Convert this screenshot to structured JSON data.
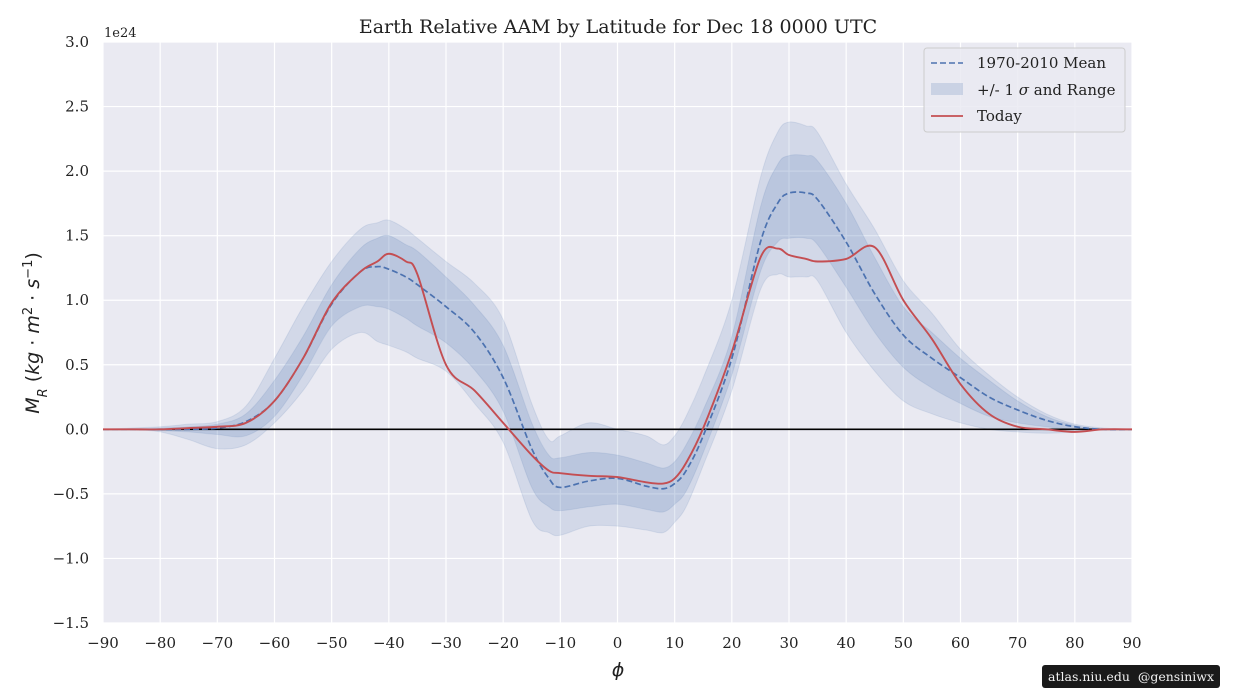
{
  "chart_data": {
    "type": "area",
    "title": "Earth Relative AAM by Latitude for Dec 18 0000 UTC",
    "xlabel": "ϕ",
    "ylabel": "M_R (kg·m²·s⁻¹)",
    "yscale_label": "1e24",
    "xlim": [
      -90,
      90
    ],
    "ylim": [
      -1.5,
      3.0
    ],
    "x_ticks": [
      -90,
      -80,
      -70,
      -60,
      -50,
      -40,
      -30,
      -20,
      -10,
      0,
      10,
      20,
      30,
      40,
      50,
      60,
      70,
      80,
      90
    ],
    "x_tick_labels": [
      "−90",
      "−80",
      "−70",
      "−60",
      "−50",
      "−40",
      "−30",
      "−20",
      "−10",
      "0",
      "10",
      "20",
      "30",
      "40",
      "50",
      "60",
      "70",
      "80",
      "90"
    ],
    "y_ticks": [
      -1.5,
      -1.0,
      -0.5,
      0.0,
      0.5,
      1.0,
      1.5,
      2.0,
      2.5,
      3.0
    ],
    "y_tick_labels": [
      "−1.5",
      "−1.0",
      "−0.5",
      "0.0",
      "0.5",
      "1.0",
      "1.5",
      "2.0",
      "2.5",
      "3.0"
    ],
    "grid": true,
    "legend_position": "top-right",
    "legend": {
      "mean_label": "1970-2010 Mean",
      "band_label_pre": "+/- 1 ",
      "band_label_sigma": "σ",
      "band_label_post": " and Range",
      "today_label": "Today"
    },
    "colors": {
      "mean": "#4c72b0",
      "band": "#4c72b0",
      "today": "#c44e52",
      "background": "#eaeaf2",
      "grid": "#ffffff",
      "zero_line": "#000000"
    },
    "x": [
      -90,
      -85,
      -80,
      -75,
      -70,
      -65,
      -60,
      -55,
      -50,
      -45,
      -42,
      -40,
      -37,
      -35,
      -30,
      -25,
      -20,
      -15,
      -12,
      -10,
      -5,
      0,
      5,
      8,
      10,
      12,
      15,
      20,
      25,
      28,
      30,
      33,
      35,
      40,
      45,
      50,
      55,
      60,
      65,
      70,
      75,
      80,
      85,
      90
    ],
    "series": [
      {
        "name": "1970-2010 Mean",
        "style": "dashed",
        "values": [
          0.0,
          0.0,
          0.0,
          0.0,
          0.01,
          0.06,
          0.22,
          0.55,
          0.97,
          1.22,
          1.26,
          1.24,
          1.18,
          1.12,
          0.95,
          0.75,
          0.4,
          -0.15,
          -0.38,
          -0.45,
          -0.4,
          -0.38,
          -0.44,
          -0.46,
          -0.42,
          -0.32,
          -0.05,
          0.55,
          1.45,
          1.75,
          1.83,
          1.83,
          1.78,
          1.45,
          1.05,
          0.73,
          0.55,
          0.4,
          0.25,
          0.15,
          0.07,
          0.02,
          0.0,
          0.0
        ]
      },
      {
        "name": "Today",
        "style": "solid",
        "values": [
          0.0,
          0.0,
          0.0,
          0.01,
          0.02,
          0.05,
          0.22,
          0.55,
          0.98,
          1.22,
          1.3,
          1.36,
          1.3,
          1.2,
          0.5,
          0.3,
          0.05,
          -0.2,
          -0.32,
          -0.34,
          -0.36,
          -0.37,
          -0.41,
          -0.42,
          -0.38,
          -0.26,
          0.01,
          0.6,
          1.33,
          1.4,
          1.35,
          1.32,
          1.3,
          1.32,
          1.41,
          1.0,
          0.7,
          0.35,
          0.12,
          0.02,
          0.0,
          -0.02,
          0.0,
          0.0
        ]
      }
    ],
    "bands": [
      {
        "kind": "range",
        "lower": [
          0.0,
          0.0,
          -0.02,
          -0.08,
          -0.15,
          -0.12,
          0.05,
          0.3,
          0.62,
          0.75,
          0.68,
          0.65,
          0.6,
          0.55,
          0.45,
          0.2,
          -0.1,
          -0.7,
          -0.8,
          -0.82,
          -0.75,
          -0.75,
          -0.78,
          -0.8,
          -0.72,
          -0.6,
          -0.28,
          0.3,
          1.08,
          1.2,
          1.18,
          1.18,
          1.15,
          0.75,
          0.45,
          0.22,
          0.12,
          0.05,
          0.0,
          -0.02,
          -0.03,
          -0.02,
          0.0,
          0.0
        ],
        "upper": [
          0.0,
          0.01,
          0.02,
          0.04,
          0.06,
          0.18,
          0.55,
          0.95,
          1.3,
          1.55,
          1.6,
          1.62,
          1.55,
          1.48,
          1.3,
          1.13,
          0.85,
          0.2,
          -0.08,
          -0.05,
          0.05,
          0.0,
          -0.05,
          -0.12,
          -0.05,
          0.1,
          0.4,
          1.0,
          1.95,
          2.3,
          2.38,
          2.35,
          2.3,
          1.9,
          1.55,
          1.15,
          0.9,
          0.62,
          0.42,
          0.25,
          0.12,
          0.04,
          0.01,
          0.0
        ]
      },
      {
        "kind": "sigma",
        "lower": [
          0.0,
          0.0,
          -0.01,
          -0.02,
          -0.04,
          -0.05,
          0.1,
          0.42,
          0.8,
          0.95,
          0.95,
          0.93,
          0.86,
          0.8,
          0.67,
          0.46,
          0.14,
          -0.45,
          -0.6,
          -0.63,
          -0.6,
          -0.58,
          -0.62,
          -0.64,
          -0.58,
          -0.48,
          -0.18,
          0.42,
          1.22,
          1.45,
          1.48,
          1.48,
          1.43,
          1.1,
          0.75,
          0.48,
          0.32,
          0.2,
          0.1,
          0.05,
          0.02,
          0.0,
          0.0,
          0.0
        ],
        "upper": [
          0.0,
          0.0,
          0.01,
          0.02,
          0.04,
          0.12,
          0.38,
          0.72,
          1.12,
          1.4,
          1.48,
          1.5,
          1.43,
          1.38,
          1.18,
          0.96,
          0.65,
          0.05,
          -0.2,
          -0.22,
          -0.18,
          -0.2,
          -0.26,
          -0.3,
          -0.25,
          -0.12,
          0.15,
          0.72,
          1.72,
          2.05,
          2.12,
          2.12,
          2.08,
          1.75,
          1.33,
          0.95,
          0.75,
          0.55,
          0.38,
          0.22,
          0.1,
          0.03,
          0.0,
          0.0
        ]
      }
    ]
  },
  "credit": {
    "site": "atlas.niu.edu",
    "handle": "@gensiniwx"
  }
}
